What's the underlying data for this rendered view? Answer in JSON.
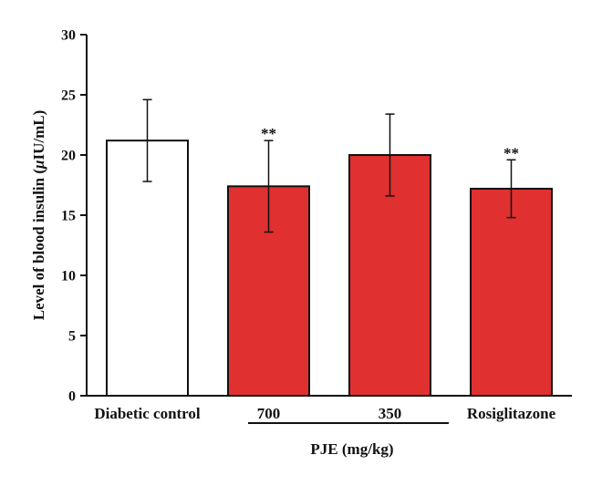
{
  "chart_data": {
    "type": "bar",
    "ylabel_parts": [
      "Level of blood insulin (",
      "μ",
      "IU/mL)"
    ],
    "group_label": "PJE (mg/kg)",
    "ylim": [
      0,
      30
    ],
    "yticks": [
      "0",
      "5",
      "10",
      "15",
      "20",
      "25",
      "30"
    ],
    "categories": [
      "Diabetic control",
      "700",
      "350",
      "Rosiglitazone"
    ],
    "values": [
      21.2,
      17.4,
      20.0,
      17.2
    ],
    "errors": [
      3.4,
      3.8,
      3.4,
      2.4
    ],
    "significance": [
      "",
      "**",
      "",
      "**"
    ],
    "colors": [
      "#ffffff",
      "#e03030",
      "#e03030",
      "#e03030"
    ],
    "grid": false,
    "legend": "none"
  }
}
